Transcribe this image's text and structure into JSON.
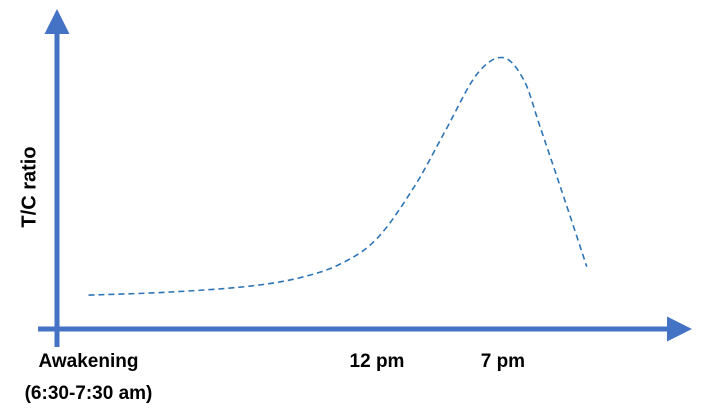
{
  "chart_data": {
    "type": "line",
    "title": "",
    "xlabel": "",
    "ylabel": "T/C ratio",
    "x_ticks": [
      {
        "x": 0,
        "lines": [
          "Awakening",
          "(6:30-7:30 am)"
        ]
      },
      {
        "x": 55,
        "lines": [
          "12 pm"
        ]
      },
      {
        "x": 79,
        "lines": [
          "7 pm"
        ]
      }
    ],
    "xlim": [
      -6,
      112
    ],
    "ylim": [
      -10,
      100
    ],
    "series": [
      {
        "line_style": "dashed",
        "x": [
          0,
          15,
          30,
          40,
          48,
          55,
          62,
          68,
          74,
          79,
          83,
          86,
          90,
          95
        ],
        "y": [
          2,
          3,
          5,
          8,
          13,
          22,
          40,
          60,
          80,
          86,
          78,
          62,
          40,
          12
        ]
      }
    ],
    "grid": false,
    "legend": "none"
  },
  "colors": {
    "axis": "#4472C4",
    "line": "#2E75B6",
    "text": "#000000"
  }
}
